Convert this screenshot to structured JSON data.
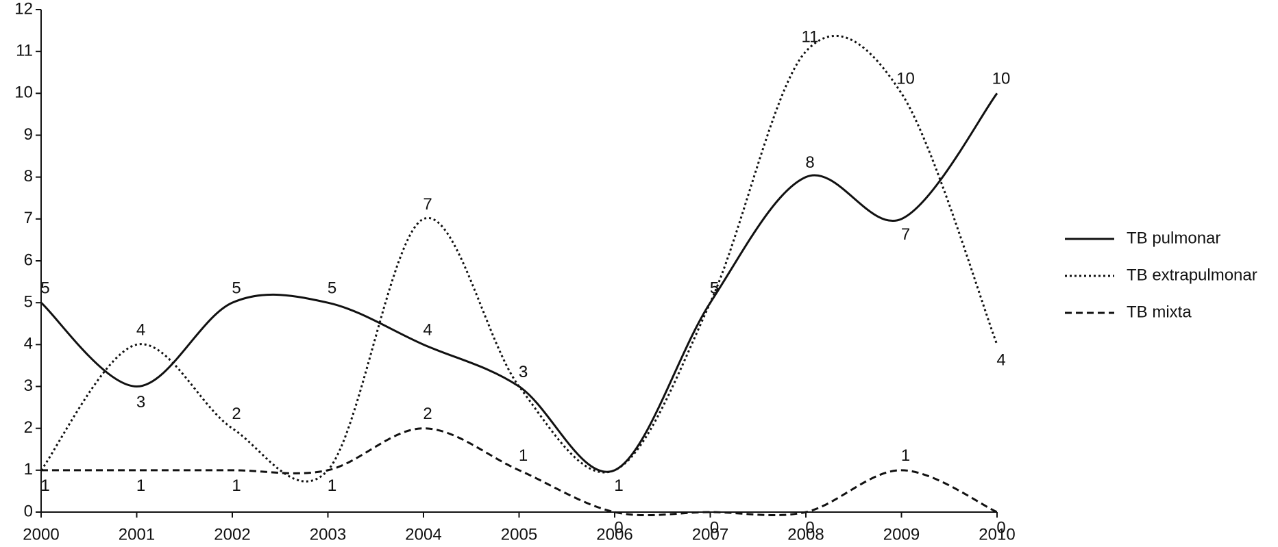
{
  "chart_data": {
    "type": "line",
    "x": [
      2000,
      2001,
      2002,
      2003,
      2004,
      2005,
      2006,
      2007,
      2008,
      2009,
      2010
    ],
    "xlim": [
      2000,
      2010
    ],
    "xticks": [
      2000,
      2001,
      2002,
      2003,
      2004,
      2005,
      2006,
      2007,
      2008,
      2009,
      2010
    ],
    "ylim": [
      0,
      12
    ],
    "yticks": [
      0,
      1,
      2,
      3,
      4,
      5,
      6,
      7,
      8,
      9,
      10,
      11,
      12
    ],
    "grid": false,
    "smooth": true,
    "legend": "right",
    "series": [
      {
        "name": "TB pulmonar",
        "color": "#111111",
        "style": "solid",
        "values": [
          5,
          3,
          5,
          5,
          4,
          3,
          1,
          5,
          8,
          7,
          10
        ]
      },
      {
        "name": "TB extrapulmonar",
        "color": "#111111",
        "style": "dotted",
        "values": [
          1,
          4,
          2,
          1,
          7,
          3,
          1,
          5,
          11,
          10,
          4
        ]
      },
      {
        "name": "TB mixta",
        "color": "#111111",
        "style": "dashed",
        "values": [
          1,
          1,
          1,
          1,
          2,
          1,
          0,
          0,
          0,
          1,
          0
        ]
      }
    ]
  }
}
